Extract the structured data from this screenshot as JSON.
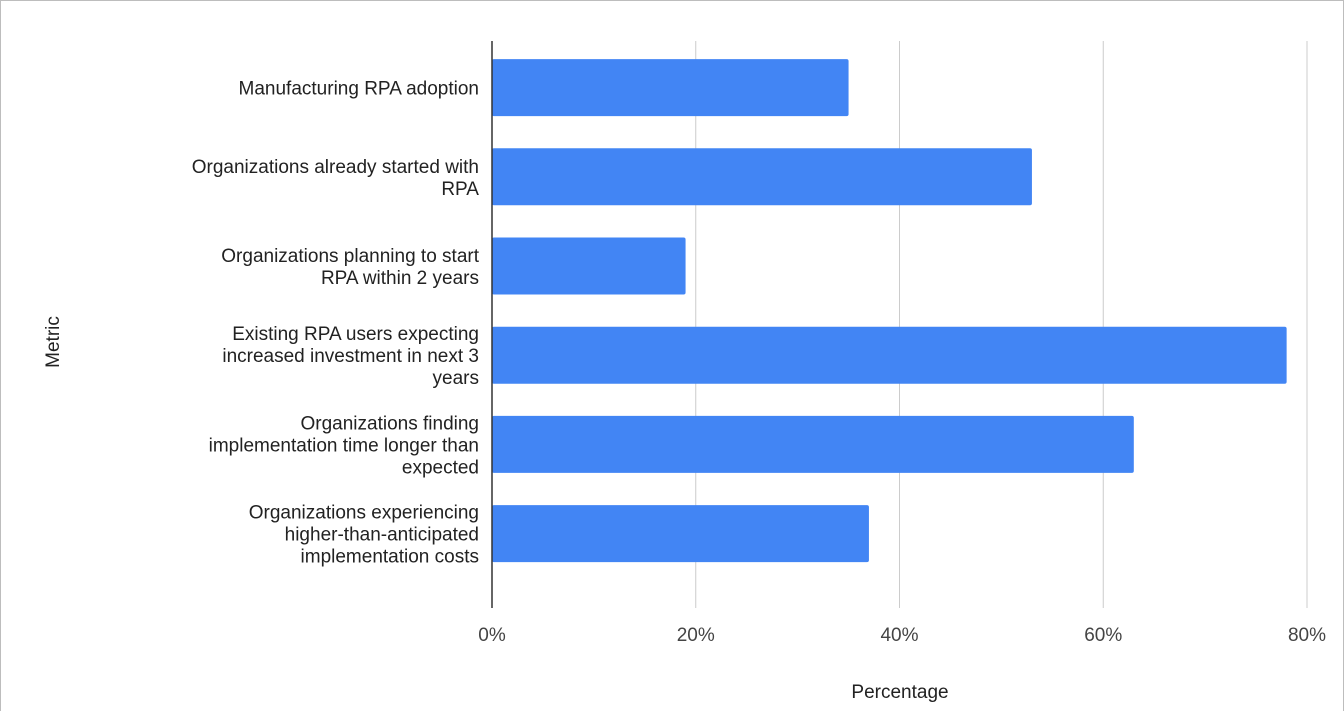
{
  "chart_data": {
    "type": "bar",
    "orientation": "horizontal",
    "title": "",
    "xlabel": "Percentage",
    "ylabel": "Metric",
    "categories": [
      "Manufacturing RPA adoption",
      "Organizations already started with RPA",
      "Organizations planning to start RPA within 2 years",
      "Existing RPA users expecting increased investment in next 3 years",
      "Organizations finding implementation time longer than expected",
      "Organizations experiencing higher-than-anticipated implementation costs"
    ],
    "category_lines": [
      [
        "Manufacturing RPA adoption"
      ],
      [
        "Organizations already started with",
        "RPA"
      ],
      [
        "Organizations planning to start",
        "RPA within 2 years"
      ],
      [
        "Existing RPA users expecting",
        "increased investment in next 3",
        "years"
      ],
      [
        "Organizations finding",
        "implementation time longer than",
        "expected"
      ],
      [
        "Organizations experiencing",
        "higher-than-anticipated",
        "implementation costs"
      ]
    ],
    "values": [
      35,
      53,
      19,
      78,
      63,
      37
    ],
    "xlim": [
      0,
      80
    ],
    "xticks": [
      0,
      20,
      40,
      60,
      80
    ],
    "xtick_labels": [
      "0%",
      "20%",
      "40%",
      "60%",
      "80%"
    ],
    "grid": true,
    "legend": "none",
    "colors": {
      "bar": "#4285f4",
      "grid": "#cccccc",
      "axis": "#333333"
    }
  }
}
